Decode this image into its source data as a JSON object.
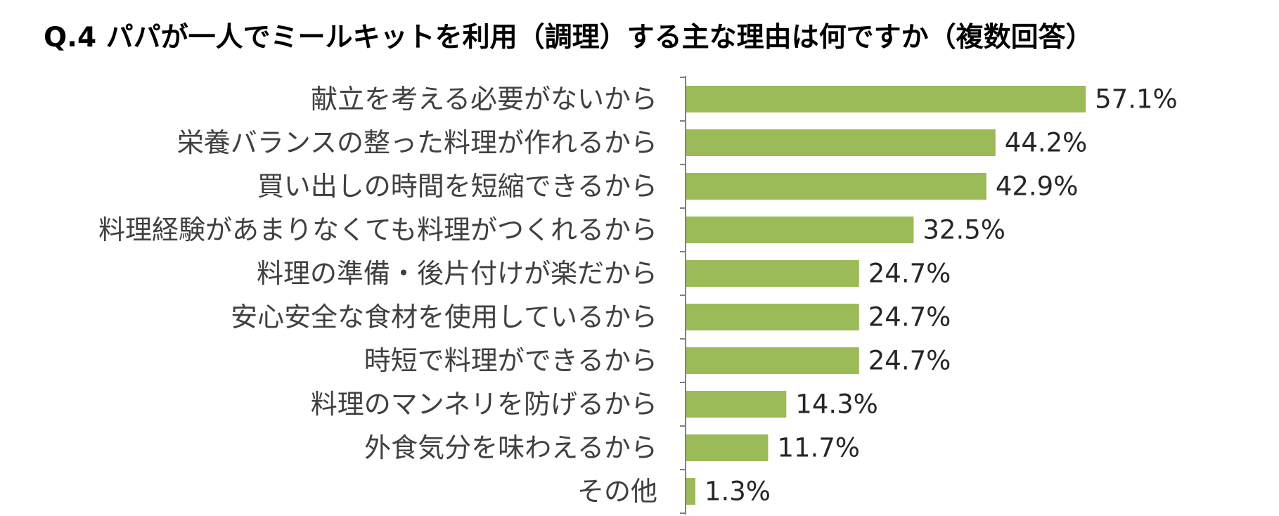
{
  "chart_data": {
    "type": "bar",
    "orientation": "horizontal",
    "title": "Q.4 パパが一人でミールキットを利用（調理）する主な理由は何ですか（複数回答）",
    "categories": [
      "献立を考える必要がないから",
      "栄養バランスの整った料理が作れるから",
      "買い出しの時間を短縮できるから",
      "料理経験があまりなくても料理がつくれるから",
      "料理の準備・後片付けが楽だから",
      "安心安全な食材を使用しているから",
      "時短で料理ができるから",
      "料理のマンネリを防げるから",
      "外食気分を味わえるから",
      "その他"
    ],
    "values": [
      57.1,
      44.2,
      42.9,
      32.5,
      24.7,
      24.7,
      24.7,
      14.3,
      11.7,
      1.3
    ],
    "value_labels": [
      "57.1%",
      "44.2%",
      "42.9%",
      "32.5%",
      "24.7%",
      "24.7%",
      "24.7%",
      "14.3%",
      "11.7%",
      "1.3%"
    ],
    "xlabel": "",
    "ylabel": "",
    "xlim": [
      0,
      70
    ],
    "grid": false,
    "legend": "none",
    "bar_color": "#9bbb59",
    "axis_color": "#808080"
  }
}
